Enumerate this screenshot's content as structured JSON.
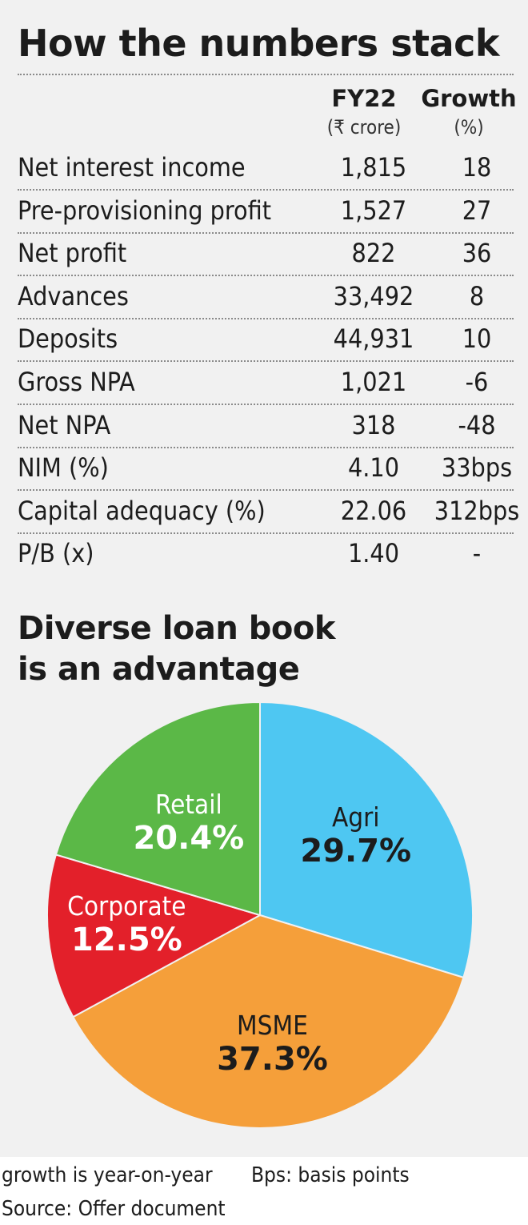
{
  "table": {
    "title": "How the numbers stack",
    "col_value_header": "FY22",
    "col_value_unit": "(₹ crore)",
    "col_growth_header": "Growth",
    "col_growth_unit": "(%)",
    "rows": [
      {
        "label": "Net interest income",
        "value": "1,815",
        "growth": "18"
      },
      {
        "label": "Pre-provisioning profit",
        "value": "1,527",
        "growth": "27"
      },
      {
        "label": "Net profit",
        "value": "822",
        "growth": "36"
      },
      {
        "label": "Advances",
        "value": "33,492",
        "growth": "8"
      },
      {
        "label": "Deposits",
        "value": "44,931",
        "growth": "10"
      },
      {
        "label": "Gross NPA",
        "value": "1,021",
        "growth": "-6"
      },
      {
        "label": "Net NPA",
        "value": "318",
        "growth": "-48"
      },
      {
        "label": "NIM (%)",
        "value": "4.10",
        "growth": "33bps"
      },
      {
        "label": "Capital adequacy (%)",
        "value": "22.06",
        "growth": "312bps"
      },
      {
        "label": "P/B (x)",
        "value": "1.40",
        "growth": "-"
      }
    ]
  },
  "chart_data": {
    "type": "pie",
    "title": "Diverse loan book is an advantage",
    "title_lines": [
      "Diverse loan book",
      "is an advantage"
    ],
    "slices": [
      {
        "name": "Agri",
        "value": 29.7,
        "label": "29.7%",
        "color": "#4ec7f2"
      },
      {
        "name": "MSME",
        "value": 37.3,
        "label": "37.3%",
        "color": "#f59f3a"
      },
      {
        "name": "Corporate",
        "value": 12.5,
        "label": "12.5%",
        "color": "#e3202a"
      },
      {
        "name": "Retail",
        "value": 20.4,
        "label": "20.4%",
        "color": "#5bb847"
      }
    ]
  },
  "footer": {
    "note_growth": "growth is year-on-year",
    "note_bps": "Bps: basis points",
    "source": "Source: Offer document"
  },
  "colors": {
    "panel_background": "#f1f1f1",
    "text": "#1c1c1c",
    "slice_label_dark": "#1c1c1c",
    "slice_label_light": "#ffffff"
  }
}
